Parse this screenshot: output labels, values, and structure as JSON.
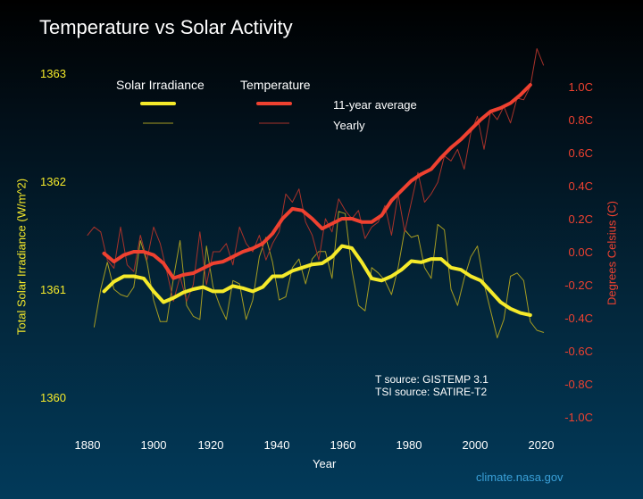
{
  "title": "Temperature vs Solar Activity",
  "legend": {
    "solar_header": "Solar Irradiance",
    "temp_header": "Temperature",
    "avg_label": "11-year average",
    "yearly_label": "Yearly"
  },
  "sources": {
    "t_source": "T source: GISTEMP 3.1",
    "tsi_source": "TSI source: SATIRE-T2"
  },
  "credit": "climate.nasa.gov",
  "colors": {
    "solar": "#f5ea2a",
    "solar_yearly": "#a59c22",
    "temp": "#ef4130",
    "temp_yearly": "#a8322a"
  },
  "chart_data": {
    "type": "line",
    "title": "Temperature vs Solar Activity",
    "xlabel": "Year",
    "ylabel_left": "Total Solar Irradiance (W/m^2)",
    "ylabel_right": "Degrees Celsius (C)",
    "xlim": [
      1880,
      2020
    ],
    "ylim_left": [
      1360,
      1363
    ],
    "ylim_right": [
      -1.0,
      1.0
    ],
    "x_ticks": [
      "1880",
      "1900",
      "1920",
      "1940",
      "1960",
      "1980",
      "2000",
      "2020"
    ],
    "left_ticks": [
      "1363",
      "1362",
      "1361",
      "1360"
    ],
    "right_ticks": [
      "1.0C",
      "0.8C",
      "0.6C",
      "0.4C",
      "0.2C",
      "0.0C",
      "-0.2C",
      "-0.4C",
      "-0.6C",
      "-0.8C",
      "-1.0C"
    ],
    "grid": false,
    "legend_position": "top-center",
    "series": [
      {
        "name": "Solar Irradiance 11-year average",
        "axis": "left",
        "x": [
          1885,
          1888,
          1891,
          1894,
          1897,
          1900,
          1903,
          1906,
          1909,
          1912,
          1915,
          1918,
          1921,
          1924,
          1927,
          1930,
          1933,
          1936,
          1939,
          1942,
          1945,
          1948,
          1951,
          1954,
          1957,
          1960,
          1963,
          1966,
          1969,
          1972,
          1975,
          1978,
          1981,
          1984,
          1987,
          1990,
          1993,
          1996,
          1999,
          2002,
          2005,
          2008,
          2011,
          2014
        ],
        "values": [
          1360.98,
          1361.07,
          1361.12,
          1361.12,
          1361.1,
          1360.98,
          1360.88,
          1360.92,
          1360.97,
          1361.0,
          1361.02,
          1360.98,
          1360.98,
          1361.03,
          1361.01,
          1360.98,
          1361.02,
          1361.12,
          1361.12,
          1361.17,
          1361.2,
          1361.23,
          1361.24,
          1361.3,
          1361.4,
          1361.38,
          1361.25,
          1361.1,
          1361.08,
          1361.12,
          1361.18,
          1361.26,
          1361.25,
          1361.28,
          1361.28,
          1361.2,
          1361.18,
          1361.12,
          1361.08,
          1360.98,
          1360.88,
          1360.82,
          1360.78,
          1360.76
        ]
      },
      {
        "name": "Solar Irradiance yearly",
        "axis": "left",
        "x": [
          1882,
          1884,
          1886,
          1888,
          1890,
          1892,
          1894,
          1896,
          1898,
          1900,
          1902,
          1904,
          1906,
          1908,
          1910,
          1912,
          1914,
          1916,
          1918,
          1920,
          1922,
          1924,
          1926,
          1928,
          1930,
          1932,
          1934,
          1936,
          1938,
          1940,
          1942,
          1944,
          1946,
          1948,
          1950,
          1952,
          1954,
          1956,
          1958,
          1960,
          1962,
          1964,
          1966,
          1968,
          1970,
          1972,
          1974,
          1976,
          1978,
          1980,
          1982,
          1984,
          1986,
          1988,
          1990,
          1992,
          1994,
          1996,
          1998,
          2000,
          2002,
          2004,
          2006,
          2008,
          2010,
          2012,
          2014,
          2016,
          2018
        ],
        "values": [
          1360.65,
          1361.0,
          1361.25,
          1361.0,
          1360.95,
          1360.93,
          1361.02,
          1361.45,
          1361.25,
          1360.9,
          1360.7,
          1360.7,
          1361.1,
          1361.45,
          1360.85,
          1360.75,
          1360.72,
          1361.4,
          1361.02,
          1360.85,
          1360.72,
          1361.08,
          1361.05,
          1360.72,
          1360.9,
          1361.3,
          1361.48,
          1361.25,
          1360.9,
          1360.93,
          1361.2,
          1361.28,
          1361.05,
          1361.28,
          1361.35,
          1361.35,
          1361.1,
          1361.72,
          1361.7,
          1361.18,
          1360.85,
          1360.8,
          1361.2,
          1361.15,
          1361.08,
          1360.95,
          1361.2,
          1361.55,
          1361.48,
          1361.5,
          1361.2,
          1361.1,
          1361.6,
          1361.55,
          1361.0,
          1360.85,
          1361.1,
          1361.3,
          1361.4,
          1361.05,
          1360.8,
          1360.55,
          1360.72,
          1361.12,
          1361.15,
          1361.08,
          1360.7,
          1360.62,
          1360.6
        ]
      },
      {
        "name": "Temperature 11-year average",
        "axis": "right",
        "x": [
          1885,
          1888,
          1891,
          1894,
          1897,
          1900,
          1903,
          1906,
          1909,
          1912,
          1915,
          1918,
          1921,
          1924,
          1927,
          1930,
          1933,
          1936,
          1939,
          1942,
          1945,
          1948,
          1951,
          1954,
          1957,
          1960,
          1963,
          1966,
          1969,
          1972,
          1975,
          1978,
          1981,
          1984,
          1987,
          1990,
          1993,
          1996,
          1999,
          2002,
          2005,
          2008,
          2011,
          2014
        ],
        "values": [
          -0.01,
          -0.06,
          -0.02,
          0.0,
          0.0,
          -0.02,
          -0.07,
          -0.16,
          -0.14,
          -0.13,
          -0.1,
          -0.07,
          -0.06,
          -0.03,
          0.0,
          0.02,
          0.05,
          0.11,
          0.2,
          0.26,
          0.25,
          0.2,
          0.14,
          0.17,
          0.2,
          0.2,
          0.18,
          0.18,
          0.22,
          0.31,
          0.37,
          0.43,
          0.47,
          0.5,
          0.57,
          0.63,
          0.68,
          0.74,
          0.8,
          0.85,
          0.87,
          0.9,
          0.95,
          1.01
        ]
      },
      {
        "name": "Temperature yearly",
        "axis": "right",
        "x": [
          1880,
          1882,
          1884,
          1886,
          1888,
          1890,
          1892,
          1894,
          1896,
          1898,
          1900,
          1902,
          1904,
          1906,
          1908,
          1910,
          1912,
          1914,
          1916,
          1918,
          1920,
          1922,
          1924,
          1926,
          1928,
          1930,
          1932,
          1934,
          1936,
          1938,
          1940,
          1942,
          1944,
          1946,
          1948,
          1950,
          1952,
          1954,
          1956,
          1958,
          1960,
          1962,
          1964,
          1966,
          1968,
          1970,
          1972,
          1974,
          1976,
          1978,
          1980,
          1982,
          1984,
          1986,
          1988,
          1990,
          1992,
          1994,
          1996,
          1998,
          2000,
          2002,
          2004,
          2006,
          2008,
          2010,
          2012,
          2014,
          2016,
          2018
        ],
        "values": [
          0.1,
          0.15,
          0.12,
          -0.05,
          -0.1,
          0.15,
          -0.08,
          -0.12,
          0.1,
          -0.05,
          0.15,
          0.05,
          -0.12,
          -0.3,
          -0.15,
          -0.3,
          -0.2,
          0.12,
          -0.2,
          0.0,
          0.0,
          0.05,
          -0.08,
          0.15,
          0.05,
          0.0,
          0.1,
          -0.05,
          0.05,
          0.12,
          0.35,
          0.3,
          0.38,
          0.18,
          0.1,
          -0.05,
          0.2,
          0.12,
          0.32,
          0.25,
          0.2,
          0.25,
          0.08,
          0.15,
          0.18,
          0.28,
          0.1,
          0.35,
          0.12,
          0.3,
          0.48,
          0.3,
          0.35,
          0.42,
          0.58,
          0.55,
          0.62,
          0.5,
          0.72,
          0.82,
          0.62,
          0.85,
          0.8,
          0.88,
          0.78,
          0.93,
          0.92,
          1.0,
          1.23,
          1.13
        ]
      }
    ]
  }
}
